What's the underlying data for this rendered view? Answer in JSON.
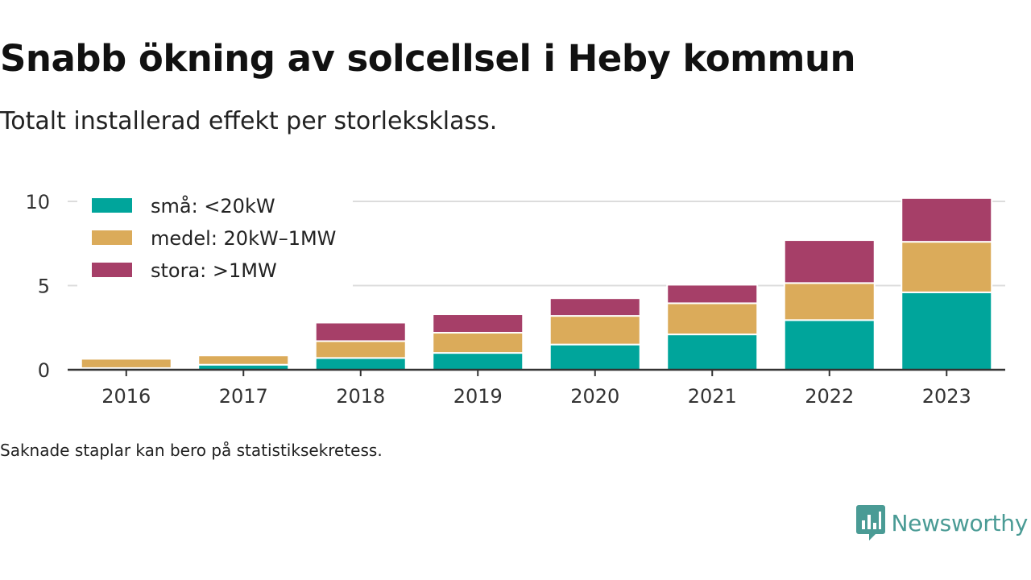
{
  "title": "Snabb ökning av solcellsel i Heby kommun",
  "subtitle": "Totalt installerad effekt per storleksklass.",
  "footnote": "Saknade staplar kan bero på statistiksekretess.",
  "brand": {
    "name": "Newsworthy",
    "icon": "bar-chart-speech-bubble-icon",
    "color": "#4a9b95"
  },
  "chart_data": {
    "type": "bar",
    "stacked": true,
    "categories": [
      "2016",
      "2017",
      "2018",
      "2019",
      "2020",
      "2021",
      "2022",
      "2023"
    ],
    "series": [
      {
        "name": "små: <20kW",
        "color": "#00a59b",
        "values": [
          0.1,
          0.3,
          0.7,
          1.0,
          1.5,
          2.1,
          2.95,
          4.6
        ]
      },
      {
        "name": "medel: 20kW–1MW",
        "color": "#dbab5a",
        "values": [
          0.55,
          0.55,
          1.0,
          1.2,
          1.7,
          1.85,
          2.2,
          3.0
        ]
      },
      {
        "name": "stora: >1MW",
        "color": "#a63f68",
        "values": [
          0,
          0,
          1.1,
          1.1,
          1.05,
          1.1,
          2.55,
          2.6
        ]
      }
    ],
    "yticks": [
      0,
      5,
      10
    ],
    "ylim": [
      0,
      10.5
    ],
    "grid": true,
    "legend": "top-left"
  }
}
